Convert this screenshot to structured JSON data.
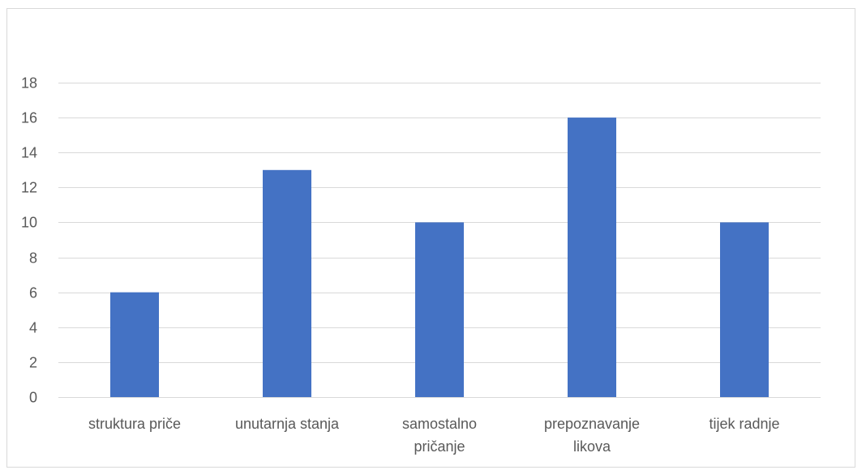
{
  "chart_data": {
    "type": "bar",
    "title": "",
    "xlabel": "",
    "ylabel": "",
    "categories": [
      [
        "struktura priče"
      ],
      [
        "unutarnja stanja"
      ],
      [
        "samostalno",
        "pričanje"
      ],
      [
        "prepoznavanje",
        "likova"
      ],
      [
        "tijek radnje"
      ]
    ],
    "values": [
      6,
      13,
      10,
      16,
      10
    ],
    "ylim": [
      0,
      18
    ],
    "yticks": [
      "0",
      "2",
      "4",
      "6",
      "8",
      "10",
      "12",
      "14",
      "16",
      "18"
    ],
    "grid": true,
    "legend": "none",
    "colors": {
      "bar": "#4472C4",
      "gridline": "#D9D9D9",
      "frame": "#D9D9D9",
      "text": "#595959"
    }
  }
}
